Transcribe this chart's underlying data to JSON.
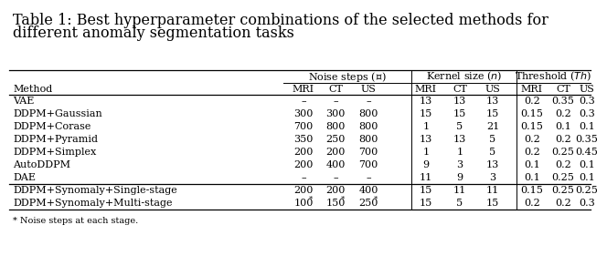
{
  "title_line1": "Table 1: Best hyperparameter combinations of the selected methods for",
  "title_line2": "different anomaly segmentation tasks",
  "group_headers": [
    [
      "Noise steps (",
      "T",
      ")"
    ],
    [
      "Kernel size (",
      "n",
      ")"
    ],
    [
      "Threshold (",
      "Th",
      ")"
    ]
  ],
  "sub_headers": [
    "MRI",
    "CT",
    "US",
    "MRI",
    "CT",
    "US",
    "MRI",
    "CT",
    "US"
  ],
  "method_header": "Method",
  "rows": [
    [
      "VAE",
      "–",
      "–",
      "–",
      "13",
      "13",
      "13",
      "0.2",
      "0.35",
      "0.3"
    ],
    [
      "DDPM+Gaussian",
      "300",
      "300",
      "800",
      "15",
      "15",
      "15",
      "0.15",
      "0.2",
      "0.3"
    ],
    [
      "DDPM+Corase",
      "700",
      "800",
      "800",
      "1",
      "5",
      "21",
      "0.15",
      "0.1",
      "0.1"
    ],
    [
      "DDPM+Pyramid",
      "350",
      "250",
      "800",
      "13",
      "13",
      "5",
      "0.2",
      "0.2",
      "0.35"
    ],
    [
      "DDPM+Simplex",
      "200",
      "200",
      "700",
      "1",
      "1",
      "5",
      "0.2",
      "0.25",
      "0.45"
    ],
    [
      "AutoDDPM",
      "200",
      "400",
      "700",
      "9",
      "3",
      "13",
      "0.1",
      "0.2",
      "0.1"
    ],
    [
      "DAE",
      "–",
      "–",
      "–",
      "11",
      "9",
      "3",
      "0.1",
      "0.25",
      "0.1"
    ]
  ],
  "highlight_rows": [
    [
      "DDPM+Synomaly+Single-stage",
      "200",
      "200",
      "400",
      "15",
      "11",
      "11",
      "0.15",
      "0.25",
      "0.25"
    ],
    [
      "DDPM+Synomaly+Multi-stage",
      "100*",
      "150*",
      "250*",
      "15",
      "5",
      "15",
      "0.2",
      "0.2",
      "0.3"
    ]
  ],
  "footnote": "* Noise steps at each stage.",
  "bg_color": "#ffffff",
  "text_color": "#000000",
  "fs_title": 11.5,
  "fs_table": 8.0
}
